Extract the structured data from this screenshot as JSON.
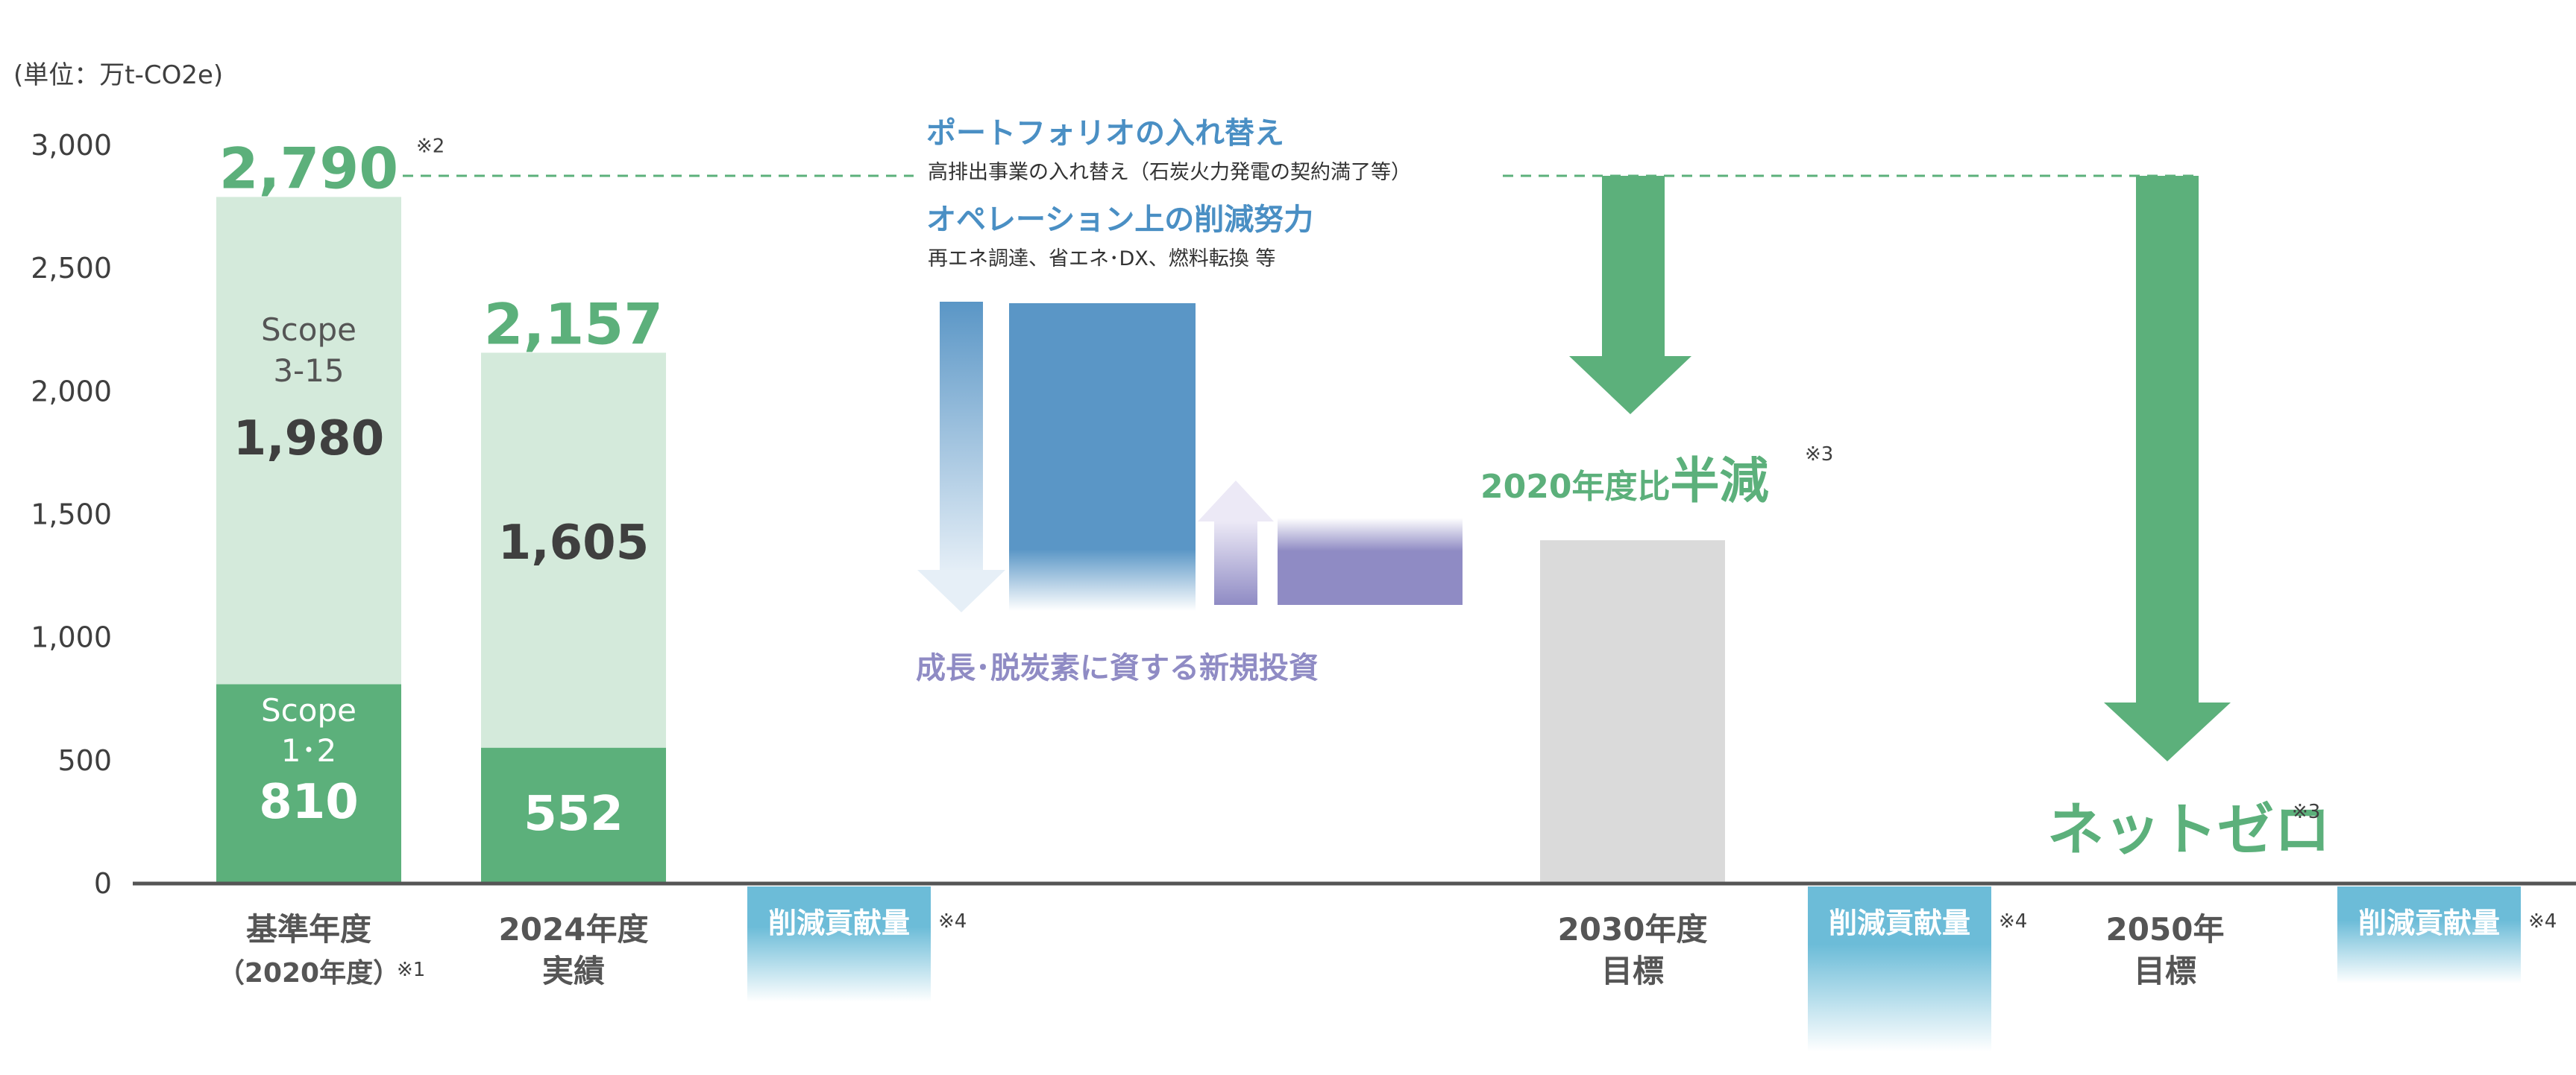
{
  "chart_data": {
    "type": "bar",
    "unit_label": "(単位：万t-CO2e)",
    "ylim": [
      0,
      3000
    ],
    "yticks": [
      "0",
      "500",
      "1,000",
      "1,500",
      "2,000",
      "2,500",
      "3,000"
    ],
    "colors": {
      "scope12": "#5cb07b",
      "scope3": "#d4eadb",
      "total_label": "#5cb07b",
      "ops_blue": "#5a96c6",
      "growth_purple": "#8f8bc4",
      "target_gray": "#dadada",
      "text_dark": "#3f3f3f",
      "heading_blue": "#4a8fc4"
    },
    "bars": [
      {
        "category": [
          "基準年度",
          "（2020年度）"
        ],
        "note": "※1",
        "total": 2790,
        "total_label": "2,790",
        "total_note": "※2",
        "scope12": 810,
        "scope12_label": "810",
        "scope12_name": [
          "Scope",
          "1･2"
        ],
        "scope3": 1980,
        "scope3_label": "1,980",
        "scope3_name": [
          "Scope",
          "3-15"
        ]
      },
      {
        "category": [
          "2024年度",
          "実績"
        ],
        "total": 2157,
        "total_label": "2,157",
        "scope12": 552,
        "scope12_label": "552",
        "scope3": 1605,
        "scope3_label": "1,605"
      },
      {
        "category": [
          "2030年度",
          "目標"
        ],
        "value": 1395
      },
      {
        "category": [
          "2050年",
          "目標"
        ],
        "value": 0
      }
    ],
    "contribution_badge": "削減貢献量",
    "contribution_note": "※4",
    "annotations": {
      "portfolio_title": "ポートフォリオの入れ替え",
      "portfolio_sub": "高排出事業の入れ替え（石炭火力発電の契約満了等）",
      "ops_title": "オペレーション上の削減努力",
      "ops_sub": "再エネ調達、省エネ･DX、燃料転換 等",
      "growth_label": "成長･脱炭素に資する新規投資",
      "target_2030_prefix": "2020年度比",
      "target_2030_big": "半減",
      "target_2030_note": "※3",
      "target_2050": "ネットゼロ",
      "target_2050_note": "※3"
    }
  }
}
